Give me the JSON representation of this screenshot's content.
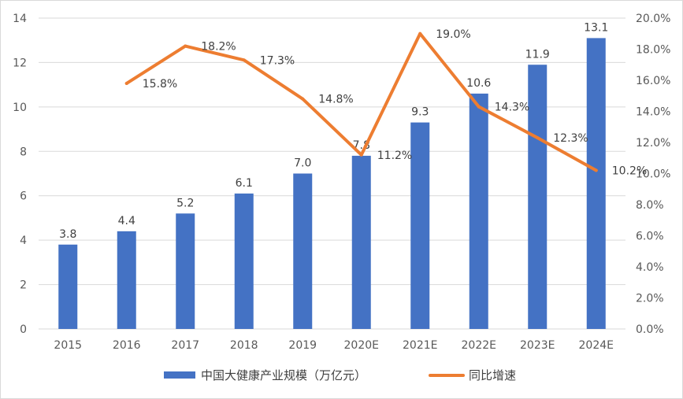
{
  "chart_data": {
    "type": "bar",
    "categories": [
      "2015",
      "2016",
      "2017",
      "2018",
      "2019",
      "2020E",
      "2021E",
      "2022E",
      "2023E",
      "2024E"
    ],
    "series": [
      {
        "name": "中国大健康产业规模（万亿元）",
        "type": "bar",
        "axis": "left",
        "color": "#4472C4",
        "values": [
          3.8,
          4.4,
          5.2,
          6.1,
          7.0,
          7.8,
          9.3,
          10.6,
          11.9,
          13.1
        ],
        "labels": [
          "3.8",
          "4.4",
          "5.2",
          "6.1",
          "7.0",
          "7.8",
          "9.3",
          "10.6",
          "11.9",
          "13.1"
        ]
      },
      {
        "name": "同比增速",
        "type": "line",
        "axis": "right",
        "color": "#ED7D31",
        "values": [
          null,
          15.8,
          18.2,
          17.3,
          14.8,
          11.2,
          19.0,
          14.3,
          12.3,
          10.2
        ],
        "labels": [
          "",
          "15.8%",
          "18.2%",
          "17.3%",
          "14.8%",
          "11.2%",
          "19.0%",
          "14.3%",
          "12.3%",
          "10.2%"
        ]
      }
    ],
    "ylim": [
      0,
      14
    ],
    "y_ticks": [
      "0",
      "2",
      "4",
      "6",
      "8",
      "10",
      "12",
      "14"
    ],
    "y2lim": [
      0,
      20
    ],
    "y2_ticks": [
      "0.0%",
      "2.0%",
      "4.0%",
      "6.0%",
      "8.0%",
      "10.0%",
      "12.0%",
      "14.0%",
      "16.0%",
      "18.0%",
      "20.0%"
    ],
    "grid": true,
    "legend_position": "bottom",
    "title": "",
    "xlabel": "",
    "ylabel": "",
    "y2label": ""
  }
}
